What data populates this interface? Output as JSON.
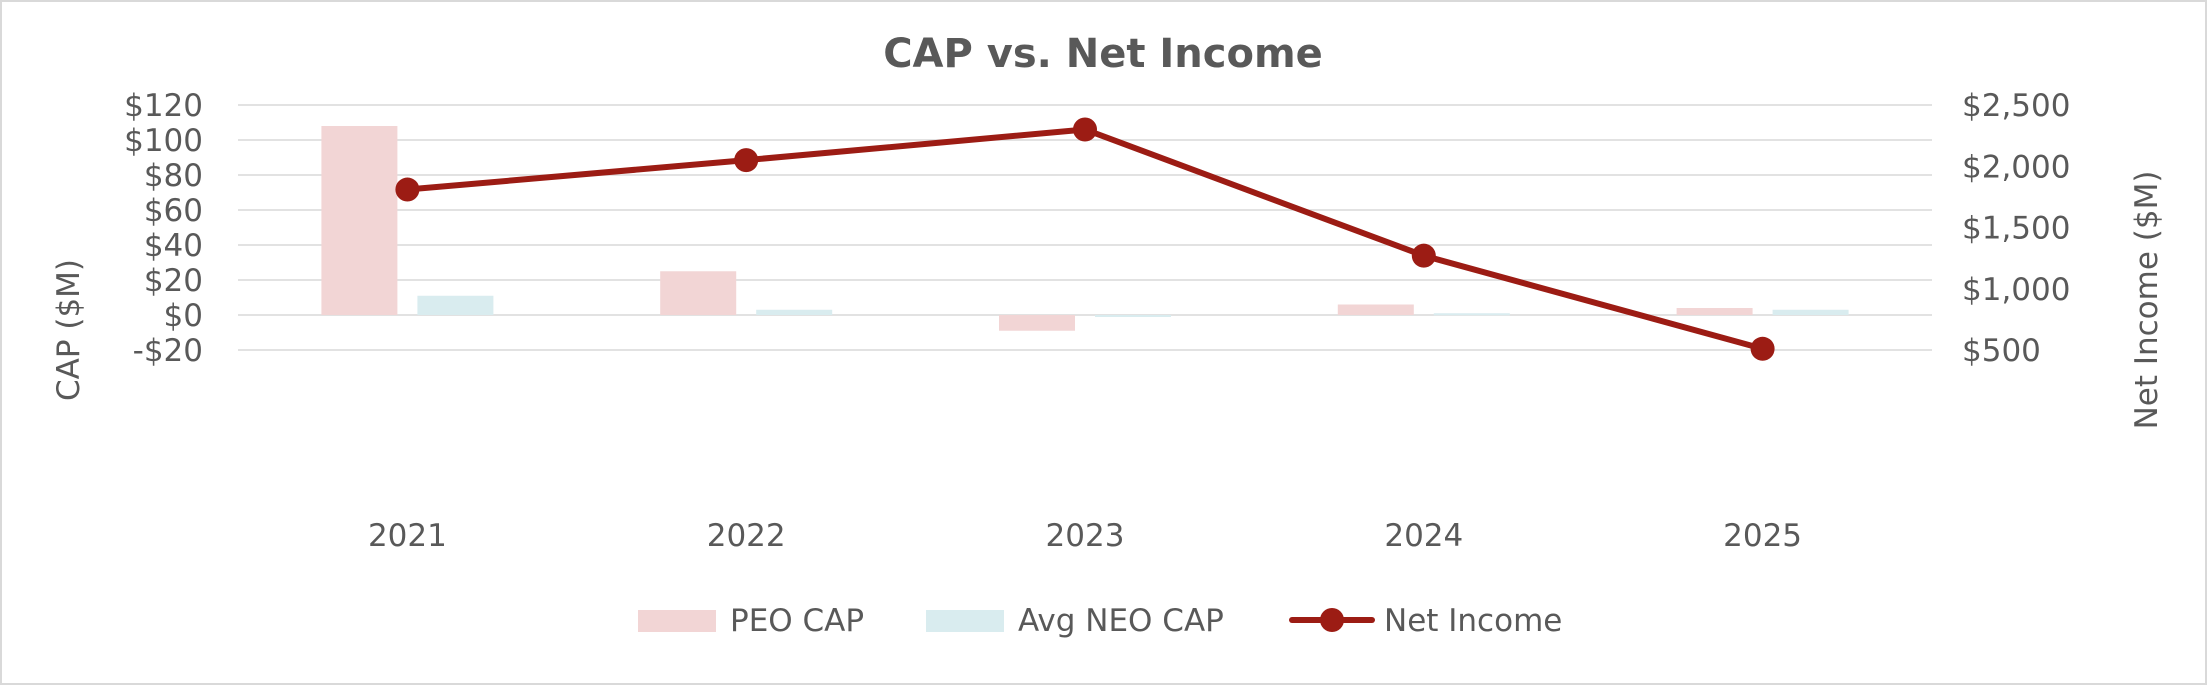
{
  "chart_data": {
    "type": "bar+line",
    "title": "CAP vs. Net Income",
    "categories": [
      "2021",
      "2022",
      "2023",
      "2024",
      "2025"
    ],
    "y_left": {
      "label": "CAP ($M)",
      "range": [
        -20,
        120
      ],
      "ticks": [
        -20,
        0,
        20,
        40,
        60,
        80,
        100,
        120
      ],
      "tick_labels": [
        "-$20",
        "$0",
        "$20",
        "$40",
        "$60",
        "$80",
        "$100",
        "$120"
      ]
    },
    "y_right": {
      "label": "Net Income ($M)",
      "range": [
        500,
        2500
      ],
      "ticks": [
        500,
        1000,
        1500,
        2000,
        2500
      ],
      "tick_labels": [
        "$500",
        "$1,000",
        "$1,500",
        "$2,000",
        "$2,500"
      ]
    },
    "series": [
      {
        "name": "PEO CAP",
        "type": "bar",
        "axis": "left",
        "color": "#f2d5d5",
        "values": [
          108,
          25,
          -9,
          6,
          4
        ]
      },
      {
        "name": "Avg NEO CAP",
        "type": "bar",
        "axis": "left",
        "color": "#d9ecef",
        "values": [
          11,
          3,
          -1,
          1,
          3
        ]
      },
      {
        "name": "Net Income",
        "type": "line",
        "axis": "right",
        "color": "#9c1c14",
        "values": [
          1810,
          2050,
          2300,
          1270,
          510
        ]
      }
    ],
    "legend_position": "bottom",
    "grid": true
  }
}
